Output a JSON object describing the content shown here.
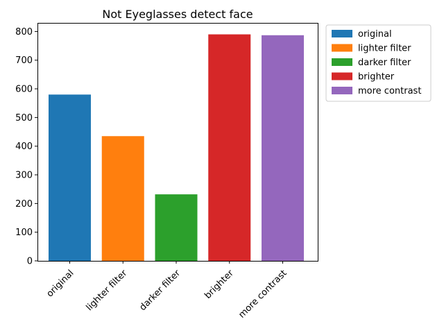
{
  "chart_data": {
    "type": "bar",
    "title": "Not Eyeglasses detect face",
    "xlabel": "",
    "ylabel": "",
    "categories": [
      "original",
      "lighter filter",
      "darker filter",
      "brighter",
      "more contrast"
    ],
    "values": [
      580,
      435,
      232,
      790,
      787
    ],
    "colors": [
      "#1f77b4",
      "#ff7f0e",
      "#2ca02c",
      "#d62728",
      "#9467bd"
    ],
    "ylim": [
      0,
      830
    ],
    "yticks": [
      0,
      100,
      200,
      300,
      400,
      500,
      600,
      700,
      800
    ],
    "grid": false,
    "legend": {
      "placement": "outside-top-right",
      "entries": [
        "original",
        "lighter filter",
        "darker filter",
        "brighter",
        "more contrast"
      ]
    }
  }
}
